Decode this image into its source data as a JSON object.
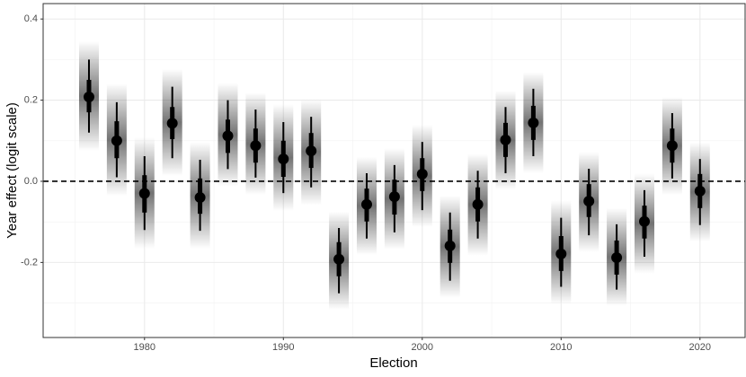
{
  "chart_data": {
    "type": "pointrange",
    "x_label": "Election",
    "y_label": "Year effect (logit scale)",
    "x": [
      1976,
      1978,
      1980,
      1982,
      1984,
      1986,
      1988,
      1990,
      1992,
      1994,
      1996,
      1998,
      2000,
      2002,
      2004,
      2006,
      2008,
      2010,
      2012,
      2014,
      2016,
      2018,
      2020
    ],
    "values": [
      0.208,
      0.1,
      -0.03,
      0.143,
      -0.04,
      0.112,
      0.088,
      0.055,
      0.075,
      -0.192,
      -0.057,
      -0.038,
      0.018,
      -0.159,
      -0.057,
      0.102,
      0.144,
      -0.179,
      -0.049,
      -0.188,
      -0.099,
      0.088,
      -0.024
    ],
    "lower_95": [
      0.12,
      0.01,
      -0.12,
      0.057,
      -0.122,
      0.03,
      0.009,
      -0.029,
      -0.015,
      -0.276,
      -0.141,
      -0.126,
      -0.071,
      -0.245,
      -0.141,
      0.02,
      0.062,
      -0.26,
      -0.133,
      -0.267,
      -0.186,
      0.007,
      -0.108
    ],
    "upper_95": [
      0.3,
      0.195,
      0.062,
      0.233,
      0.053,
      0.2,
      0.177,
      0.146,
      0.159,
      -0.115,
      0.02,
      0.04,
      0.097,
      -0.077,
      0.026,
      0.183,
      0.228,
      -0.09,
      0.031,
      -0.106,
      -0.022,
      0.168,
      0.055
    ],
    "lower_66": [
      0.17,
      0.057,
      -0.077,
      0.104,
      -0.08,
      0.07,
      0.046,
      0.011,
      0.033,
      -0.234,
      -0.099,
      -0.082,
      -0.024,
      -0.201,
      -0.099,
      0.06,
      0.102,
      -0.221,
      -0.088,
      -0.23,
      -0.141,
      0.046,
      -0.066
    ],
    "upper_66": [
      0.25,
      0.148,
      0.015,
      0.183,
      0.007,
      0.152,
      0.13,
      0.1,
      0.119,
      -0.15,
      -0.018,
      0.004,
      0.057,
      -0.119,
      -0.015,
      0.144,
      0.186,
      -0.135,
      -0.007,
      -0.146,
      -0.06,
      0.13,
      0.018
    ],
    "color": "#000000",
    "xlim": [
      1972.7,
      2023.25
    ],
    "xticks": [
      1980,
      1990,
      2000,
      2010,
      2020
    ],
    "ylim": [
      -0.385,
      0.438
    ],
    "yticks": [
      -0.2,
      {
        "value": 0,
        "label": "0.0"
      },
      0.2,
      0.4
    ],
    "hline": 0,
    "grid": true
  }
}
